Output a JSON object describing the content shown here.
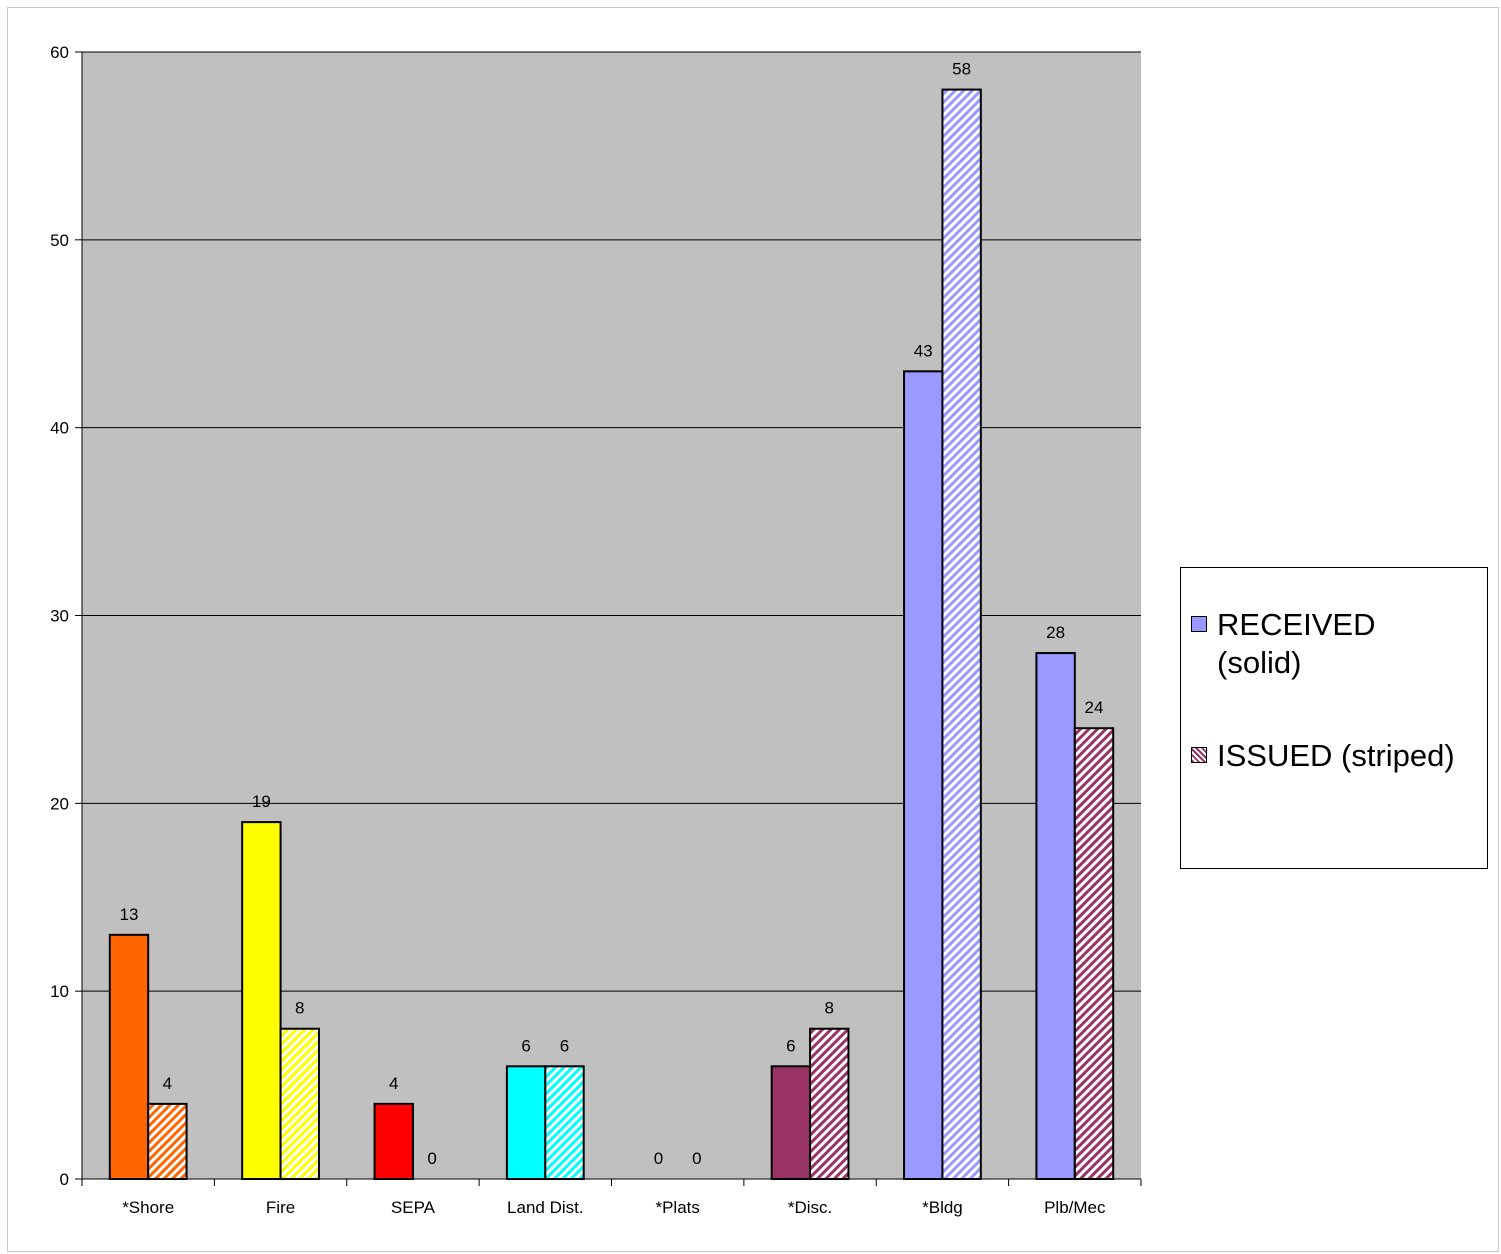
{
  "chart_data": {
    "type": "bar",
    "title": "",
    "xlabel": "",
    "ylabel": "",
    "ylim": [
      0,
      60
    ],
    "yticks": [
      0,
      10,
      20,
      30,
      40,
      50,
      60
    ],
    "grid": true,
    "legend_position": "right",
    "categories": [
      "*Shore",
      "Fire",
      "SEPA",
      "Land Dist.",
      "*Plats",
      "*Disc.",
      "*Bldg",
      "Plb/Mec"
    ],
    "category_colors": [
      "#ff6600",
      "#ffff00",
      "#ff0000",
      "#00ffff",
      "#9999ff",
      "#993366",
      "#9999ff",
      "#9999ff"
    ],
    "series": [
      {
        "name": "RECEIVED (solid)",
        "style": "solid",
        "values": [
          13,
          19,
          4,
          6,
          0,
          6,
          43,
          28
        ]
      },
      {
        "name": "ISSUED (striped)",
        "style": "striped",
        "values": [
          4,
          8,
          0,
          6,
          0,
          8,
          58,
          24
        ],
        "colors": [
          "#ff6600",
          "#ffff00",
          "#ff0000",
          "#00ffff",
          "#9999ff",
          "#993366",
          "#9999ff",
          "#993366"
        ]
      }
    ]
  },
  "legend": {
    "received_label": "RECEIVED (solid)",
    "received_color": "#9999ff",
    "issued_label": "ISSUED (striped)",
    "issued_color": "#993366"
  },
  "colors": {
    "plot_background": "#c0c0c0",
    "gridline": "#000000"
  }
}
